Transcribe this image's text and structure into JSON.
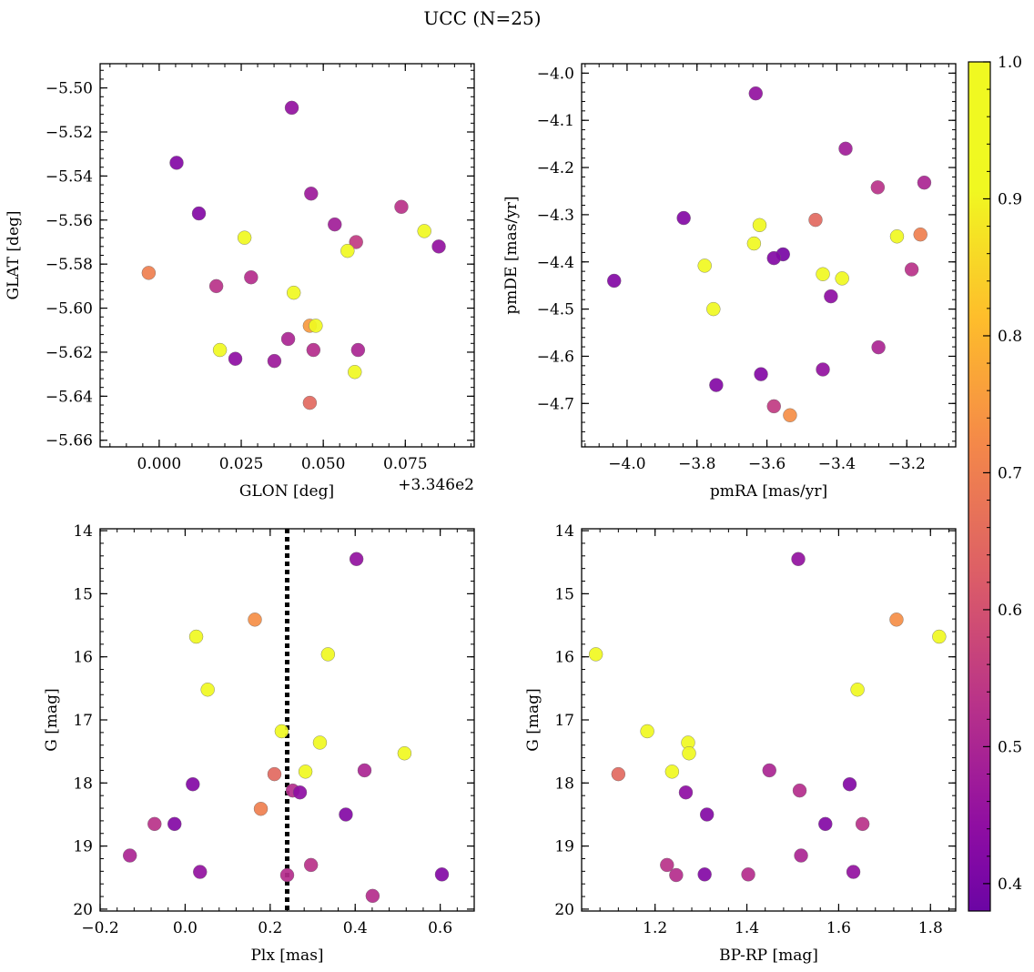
{
  "title": "UCC (N=25)",
  "colormap": "plasma",
  "colorbar": {
    "min": 0.38,
    "max": 1.0,
    "ticks": [
      "0.4",
      "0.5",
      "0.6",
      "0.7",
      "0.8",
      "0.9",
      "1.0"
    ]
  },
  "chart_data": [
    {
      "type": "scatter",
      "id": "glon-glat",
      "xlabel": "GLON [deg]",
      "ylabel": "GLAT [deg]",
      "offset_label": "+3.346e2",
      "xlim": [
        -0.018,
        0.096
      ],
      "ylim": [
        -5.663,
        -5.489
      ],
      "xticks": [
        0.0,
        0.025,
        0.05,
        0.075
      ],
      "xtick_labels": [
        "0.000",
        "0.025",
        "0.050",
        "0.075"
      ],
      "yticks": [
        -5.66,
        -5.64,
        -5.62,
        -5.6,
        -5.58,
        -5.56,
        -5.54,
        -5.52,
        -5.5
      ],
      "ytick_labels": [
        "−5.66",
        "−5.64",
        "−5.62",
        "−5.60",
        "−5.58",
        "−5.56",
        "−5.54",
        "−5.52",
        "−5.50"
      ],
      "points": [
        {
          "x": 0.0404,
          "y": -5.509,
          "c": 0.45
        },
        {
          "x": 0.0053,
          "y": -5.534,
          "c": 0.42
        },
        {
          "x": 0.0121,
          "y": -5.557,
          "c": 0.42
        },
        {
          "x": 0.0463,
          "y": -5.548,
          "c": 0.47
        },
        {
          "x": 0.0535,
          "y": -5.562,
          "c": 0.48
        },
        {
          "x": 0.06,
          "y": -5.57,
          "c": 0.55
        },
        {
          "x": 0.0574,
          "y": -5.574,
          "c": 0.95
        },
        {
          "x": 0.026,
          "y": -5.568,
          "c": 0.98
        },
        {
          "x": 0.0738,
          "y": -5.554,
          "c": 0.53
        },
        {
          "x": 0.0808,
          "y": -5.565,
          "c": 0.99
        },
        {
          "x": 0.0852,
          "y": -5.572,
          "c": 0.45
        },
        {
          "x": -0.0032,
          "y": -5.584,
          "c": 0.7
        },
        {
          "x": 0.0174,
          "y": -5.59,
          "c": 0.53
        },
        {
          "x": 0.028,
          "y": -5.586,
          "c": 0.52
        },
        {
          "x": 0.041,
          "y": -5.593,
          "c": 0.99
        },
        {
          "x": 0.0459,
          "y": -5.608,
          "c": 0.75
        },
        {
          "x": 0.0477,
          "y": -5.608,
          "c": 0.97
        },
        {
          "x": 0.0393,
          "y": -5.614,
          "c": 0.5
        },
        {
          "x": 0.0185,
          "y": -5.619,
          "c": 0.92
        },
        {
          "x": 0.047,
          "y": -5.619,
          "c": 0.52
        },
        {
          "x": 0.0606,
          "y": -5.619,
          "c": 0.5
        },
        {
          "x": 0.0232,
          "y": -5.623,
          "c": 0.44
        },
        {
          "x": 0.0351,
          "y": -5.624,
          "c": 0.47
        },
        {
          "x": 0.0596,
          "y": -5.629,
          "c": 0.99
        },
        {
          "x": 0.0459,
          "y": -5.643,
          "c": 0.65
        }
      ]
    },
    {
      "type": "scatter",
      "id": "pmra-pmde",
      "xlabel": "pmRA [mas/yr]",
      "ylabel": "pmDE [mas/yr]",
      "xlim": [
        -4.13,
        -3.06
      ],
      "ylim": [
        -4.792,
        -3.98
      ],
      "xticks": [
        -4.0,
        -3.8,
        -3.6,
        -3.4,
        -3.2
      ],
      "xtick_labels": [
        "−4.0",
        "−3.8",
        "−3.6",
        "−3.4",
        "−3.2"
      ],
      "yticks": [
        -4.7,
        -4.6,
        -4.5,
        -4.4,
        -4.3,
        -4.2,
        -4.1,
        -4.0
      ],
      "ytick_labels": [
        "−4.7",
        "−4.6",
        "−4.5",
        "−4.4",
        "−4.3",
        "−4.2",
        "−4.1",
        "−4.0"
      ],
      "points": [
        {
          "x": -3.632,
          "y": -4.043,
          "c": 0.45
        },
        {
          "x": -3.375,
          "y": -4.16,
          "c": 0.48
        },
        {
          "x": -3.283,
          "y": -4.242,
          "c": 0.53
        },
        {
          "x": -3.15,
          "y": -4.232,
          "c": 0.5
        },
        {
          "x": -3.838,
          "y": -4.307,
          "c": 0.42
        },
        {
          "x": -3.621,
          "y": -4.322,
          "c": 0.98
        },
        {
          "x": -3.461,
          "y": -4.311,
          "c": 0.65
        },
        {
          "x": -3.637,
          "y": -4.361,
          "c": 0.95
        },
        {
          "x": -3.554,
          "y": -4.384,
          "c": 0.4
        },
        {
          "x": -3.58,
          "y": -4.392,
          "c": 0.42
        },
        {
          "x": -3.228,
          "y": -4.346,
          "c": 0.99
        },
        {
          "x": -3.161,
          "y": -4.342,
          "c": 0.7
        },
        {
          "x": -3.186,
          "y": -4.416,
          "c": 0.53
        },
        {
          "x": -3.778,
          "y": -4.408,
          "c": 0.95
        },
        {
          "x": -3.44,
          "y": -4.426,
          "c": 0.92
        },
        {
          "x": -3.385,
          "y": -4.435,
          "c": 0.97
        },
        {
          "x": -4.037,
          "y": -4.44,
          "c": 0.42
        },
        {
          "x": -3.417,
          "y": -4.473,
          "c": 0.44
        },
        {
          "x": -3.753,
          "y": -4.5,
          "c": 0.99
        },
        {
          "x": -3.281,
          "y": -4.581,
          "c": 0.5
        },
        {
          "x": -3.44,
          "y": -4.628,
          "c": 0.45
        },
        {
          "x": -3.617,
          "y": -4.638,
          "c": 0.42
        },
        {
          "x": -3.745,
          "y": -4.661,
          "c": 0.42
        },
        {
          "x": -3.58,
          "y": -4.706,
          "c": 0.55
        },
        {
          "x": -3.534,
          "y": -4.725,
          "c": 0.73
        }
      ]
    },
    {
      "type": "scatter",
      "id": "plx-g",
      "xlabel": "Plx [mas]",
      "ylabel": "G [mag]",
      "y_inverted": true,
      "vline_x": 0.24,
      "xlim": [
        -0.2,
        0.68
      ],
      "ylim": [
        20.03,
        13.97
      ],
      "xticks": [
        -0.2,
        0.0,
        0.2,
        0.4,
        0.6
      ],
      "xtick_labels": [
        "−0.2",
        "0.0",
        "0.2",
        "0.4",
        "0.6"
      ],
      "yticks": [
        14,
        15,
        16,
        17,
        18,
        19,
        20
      ],
      "ytick_labels": [
        "14",
        "15",
        "16",
        "17",
        "18",
        "19",
        "20"
      ],
      "points": [
        {
          "x": 0.403,
          "y": 14.45,
          "c": 0.45
        },
        {
          "x": 0.164,
          "y": 15.41,
          "c": 0.73
        },
        {
          "x": 0.026,
          "y": 15.68,
          "c": 0.99
        },
        {
          "x": 0.336,
          "y": 15.96,
          "c": 0.98
        },
        {
          "x": 0.053,
          "y": 16.52,
          "c": 0.99
        },
        {
          "x": 0.227,
          "y": 17.18,
          "c": 0.99
        },
        {
          "x": 0.317,
          "y": 17.36,
          "c": 0.97
        },
        {
          "x": 0.516,
          "y": 17.53,
          "c": 0.95
        },
        {
          "x": 0.283,
          "y": 17.82,
          "c": 0.92
        },
        {
          "x": 0.422,
          "y": 17.8,
          "c": 0.5
        },
        {
          "x": 0.21,
          "y": 17.86,
          "c": 0.65
        },
        {
          "x": 0.018,
          "y": 18.02,
          "c": 0.42
        },
        {
          "x": 0.253,
          "y": 18.12,
          "c": 0.52
        },
        {
          "x": 0.27,
          "y": 18.15,
          "c": 0.44
        },
        {
          "x": 0.178,
          "y": 18.41,
          "c": 0.7
        },
        {
          "x": 0.378,
          "y": 18.5,
          "c": 0.42
        },
        {
          "x": -0.072,
          "y": 18.65,
          "c": 0.53
        },
        {
          "x": -0.025,
          "y": 18.65,
          "c": 0.42
        },
        {
          "x": -0.13,
          "y": 19.15,
          "c": 0.5
        },
        {
          "x": 0.296,
          "y": 19.3,
          "c": 0.53
        },
        {
          "x": 0.035,
          "y": 19.41,
          "c": 0.45
        },
        {
          "x": 0.24,
          "y": 19.46,
          "c": 0.52
        },
        {
          "x": 0.604,
          "y": 19.45,
          "c": 0.42
        },
        {
          "x": 0.441,
          "y": 19.79,
          "c": 0.52
        }
      ]
    },
    {
      "type": "scatter",
      "id": "bprp-g",
      "xlabel": "BP-RP [mag]",
      "ylabel": "G [mag]",
      "y_inverted": true,
      "xlim": [
        1.04,
        1.855
      ],
      "ylim": [
        20.03,
        13.97
      ],
      "xticks": [
        1.2,
        1.4,
        1.6,
        1.8
      ],
      "xtick_labels": [
        "1.2",
        "1.4",
        "1.6",
        "1.8"
      ],
      "yticks": [
        14,
        15,
        16,
        17,
        18,
        19,
        20
      ],
      "ytick_labels": [
        "14",
        "15",
        "16",
        "17",
        "18",
        "19",
        "20"
      ],
      "points": [
        {
          "x": 1.512,
          "y": 14.45,
          "c": 0.45
        },
        {
          "x": 1.726,
          "y": 15.41,
          "c": 0.73
        },
        {
          "x": 1.819,
          "y": 15.68,
          "c": 0.99
        },
        {
          "x": 1.071,
          "y": 15.96,
          "c": 0.98
        },
        {
          "x": 1.641,
          "y": 16.52,
          "c": 0.99
        },
        {
          "x": 1.183,
          "y": 17.18,
          "c": 0.99
        },
        {
          "x": 1.272,
          "y": 17.36,
          "c": 0.97
        },
        {
          "x": 1.274,
          "y": 17.53,
          "c": 0.95
        },
        {
          "x": 1.237,
          "y": 17.82,
          "c": 0.92
        },
        {
          "x": 1.449,
          "y": 17.8,
          "c": 0.5
        },
        {
          "x": 1.12,
          "y": 17.86,
          "c": 0.65
        },
        {
          "x": 1.624,
          "y": 18.02,
          "c": 0.42
        },
        {
          "x": 1.515,
          "y": 18.12,
          "c": 0.52
        },
        {
          "x": 1.267,
          "y": 18.15,
          "c": 0.44
        },
        {
          "x": 1.313,
          "y": 18.5,
          "c": 0.42
        },
        {
          "x": 1.571,
          "y": 18.65,
          "c": 0.42
        },
        {
          "x": 1.652,
          "y": 18.65,
          "c": 0.53
        },
        {
          "x": 1.518,
          "y": 19.15,
          "c": 0.5
        },
        {
          "x": 1.226,
          "y": 19.3,
          "c": 0.53
        },
        {
          "x": 1.632,
          "y": 19.41,
          "c": 0.45
        },
        {
          "x": 1.246,
          "y": 19.46,
          "c": 0.52
        },
        {
          "x": 1.308,
          "y": 19.45,
          "c": 0.42
        },
        {
          "x": 1.403,
          "y": 19.45,
          "c": 0.52
        }
      ]
    }
  ]
}
